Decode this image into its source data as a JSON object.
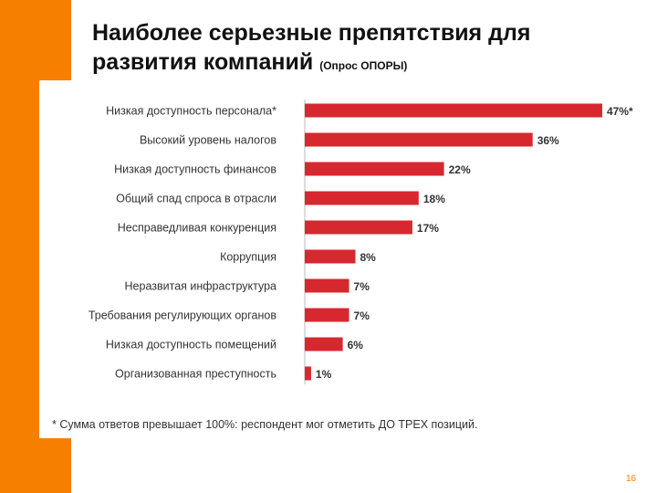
{
  "slide": {
    "title_main": "Наиболее серьезные препятствия для развития компаний",
    "title_sub": "(Опрос ОПОРЫ)",
    "footnote": "* Сумма ответов превышает 100%: респондент мог отметить ДО ТРЕХ позиций.",
    "page_number": "16"
  },
  "colors": {
    "bar": "#d7282f",
    "accent": "#f77f00"
  },
  "chart_data": {
    "type": "bar",
    "orientation": "horizontal",
    "title": "Наиболее серьезные препятствия для развития компаний",
    "xlim": [
      0,
      47
    ],
    "categories": [
      "Низкая доступность персонала*",
      "Высокий уровень налогов",
      "Низкая доступность финансов",
      "Общий спад спроса в отрасли",
      "Несправедливая конкуренция",
      "Коррупция",
      "Неразвитая инфраструктура",
      "Требования регулирующих органов",
      "Низкая доступность помещений",
      "Организованная преступность"
    ],
    "values": [
      47,
      36,
      22,
      18,
      17,
      8,
      7,
      7,
      6,
      1
    ],
    "labels": [
      "47%*",
      "36%",
      "22%",
      "18%",
      "17%",
      "8%",
      "7%",
      "7%",
      "6%",
      "1%"
    ]
  }
}
